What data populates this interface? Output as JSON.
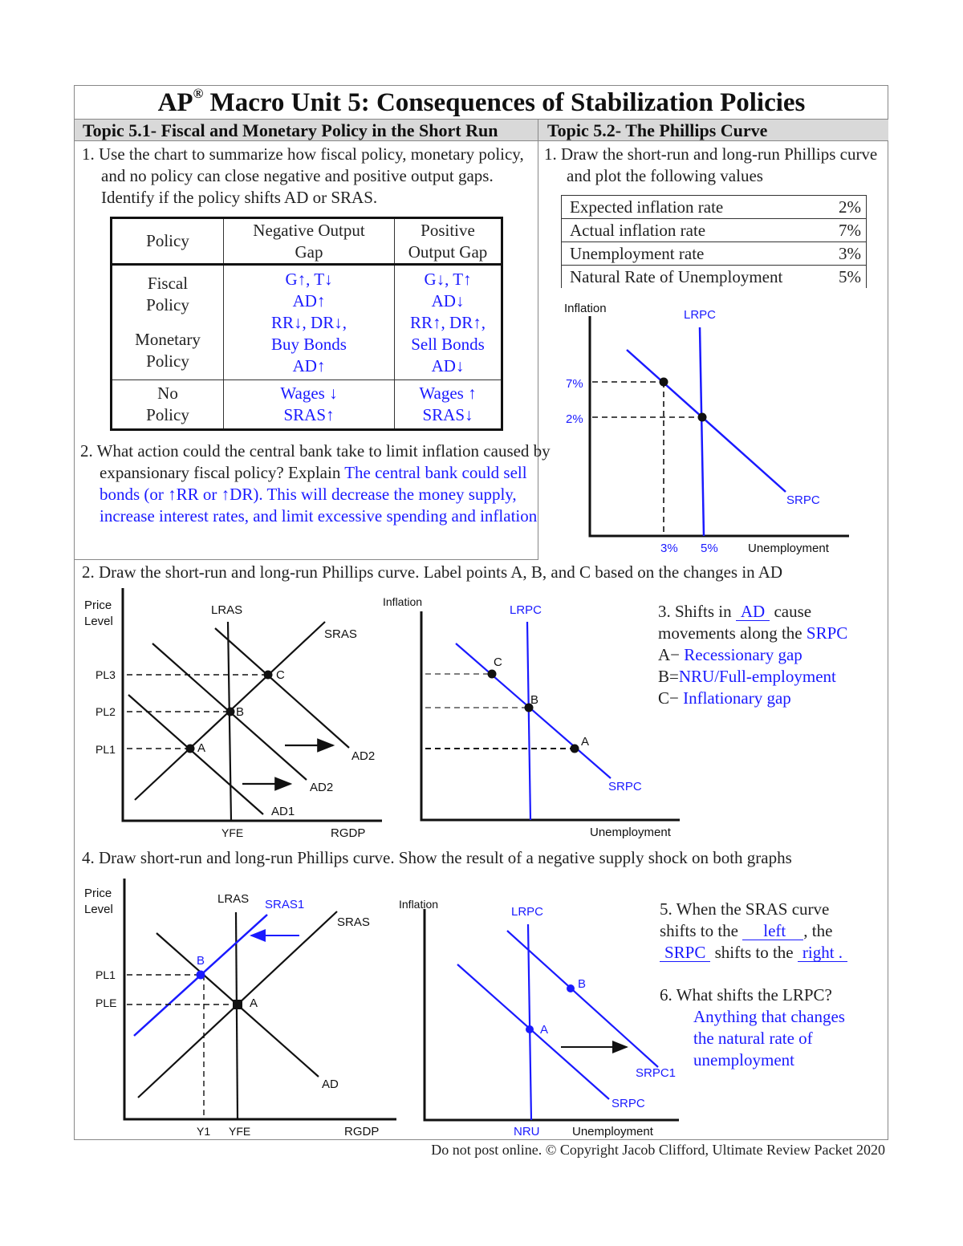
{
  "title": {
    "main_prefix": "AP",
    "registered": "®",
    "main": " Macro Unit 5: Consequences of Stabilization Policies"
  },
  "topics": {
    "left": "Topic 5.1- Fiscal and Monetary Policy in the Short Run",
    "right": "Topic 5.2- The Phillips Curve"
  },
  "left": {
    "q1": "1. Use the chart to summarize how fiscal policy, monetary policy, and no policy can close negative and positive output gaps. Identify if the policy shifts AD or SRAS.",
    "table": {
      "headers": [
        "Policy",
        "Negative Output Gap",
        "Positive Output Gap"
      ],
      "rows": [
        {
          "policy": [
            "Fiscal",
            "Policy"
          ],
          "neg": [
            "G↑, T↓",
            "AD↑"
          ],
          "pos": [
            "G↓, T↑",
            "AD↓"
          ]
        },
        {
          "policy": [
            "Monetary",
            "Policy"
          ],
          "neg": [
            "RR↓, DR↓,",
            "Buy Bonds",
            "AD↑"
          ],
          "pos": [
            "RR↑, DR↑,",
            "Sell Bonds",
            "AD↓"
          ]
        },
        {
          "policy": [
            "No",
            "Policy"
          ],
          "neg": [
            "Wages ↓",
            "SRAS↑"
          ],
          "pos": [
            "Wages ↑",
            "SRAS↓"
          ]
        }
      ]
    },
    "q2": {
      "question": "2. What action could the central bank take to limit inflation caused by expansionary fiscal policy? Explain ",
      "answer": "The central bank could sell bonds (or ↑RR or ↑DR). This will decrease the money supply, increase interest rates, and limit excessive spending and inflation"
    }
  },
  "right": {
    "q1": "1.  Draw the short-run and long-run Phillips curve and plot the following values",
    "values": [
      {
        "label": "Expected inflation rate",
        "value": "2%"
      },
      {
        "label": "Actual inflation rate",
        "value": "7%"
      },
      {
        "label": "Unemployment rate",
        "value": "3%"
      },
      {
        "label": "Natural Rate of Unemployment",
        "value": "5%"
      }
    ],
    "graph": {
      "ylabel": "Inflation",
      "xlabel": "Unemployment",
      "lrpc": "LRPC",
      "srpc": "SRPC",
      "y_ticks": [
        "7%",
        "2%"
      ],
      "x_ticks": [
        "3%",
        "5%"
      ]
    }
  },
  "section2": {
    "heading": "2. Draw the short-run and long-run Phillips curve. Label points A, B, and C based on the changes in AD",
    "adas": {
      "ylabel1": "Price",
      "ylabel2": "Level",
      "lras": "LRAS",
      "sras": "SRAS",
      "ad1": "AD1",
      "ad2a": "AD2",
      "ad2b": "AD2",
      "pl3": "PL3",
      "pl2": "PL2",
      "pl1": "PL1",
      "a": "A",
      "b": "B",
      "c": "C",
      "yfe": "YFE",
      "xlabel": "RGDP"
    },
    "pc": {
      "ylabel": "Inflation",
      "xlabel": "Unemployment",
      "lrpc": "LRPC",
      "srpc": "SRPC",
      "a": "A",
      "b": "B",
      "c": "C"
    },
    "q3": {
      "pre": "3. Shifts in ",
      "blank": "AD",
      "post": " cause",
      "line2_pre": "movements along the ",
      "line2_ans": "SRPC",
      "items": [
        {
          "k": "A−",
          "v": "Recessionary gap"
        },
        {
          "k": "B=",
          "v": "NRU/Full-employment"
        },
        {
          "k": "C−",
          "v": "Inflationary gap"
        }
      ]
    }
  },
  "section4": {
    "heading": "4. Draw short-run and long-run Phillips curve. Show the result of a negative supply shock on both graphs",
    "adas": {
      "ylabel1": "Price",
      "ylabel2": "Level",
      "lras": "LRAS",
      "sras1": "SRAS1",
      "sras": "SRAS",
      "ad": "AD",
      "pl1": "PL1",
      "ple": "PLE",
      "a": "A",
      "b": "B",
      "y1": "Y1",
      "yfe": "YFE",
      "xlabel": "RGDP"
    },
    "pc": {
      "ylabel": "Inflation",
      "xlabel": "Unemployment",
      "lrpc": "LRPC",
      "srpc1": "SRPC1",
      "srpc": "SRPC",
      "a": "A",
      "b": "B",
      "nru": "NRU"
    },
    "q5": {
      "l1": "5. When the SRAS curve",
      "l2_pre": "shifts to the ",
      "blank1": "left",
      "l2_post": ", the",
      "blank2": "SRPC",
      "l3_mid": " shifts to the ",
      "blank3": "right ."
    },
    "q6": {
      "question": "6. What shifts the LRPC?",
      "answer": [
        "Anything that changes",
        "the natural rate of",
        "unemployment"
      ]
    }
  },
  "footer": "Do not post online. © Copyright Jacob Clifford, Ultimate Review Packet 2020",
  "colors": {
    "answer": "#1a1aff",
    "header_bg": "#d9d9d9",
    "ink": "#111111"
  }
}
